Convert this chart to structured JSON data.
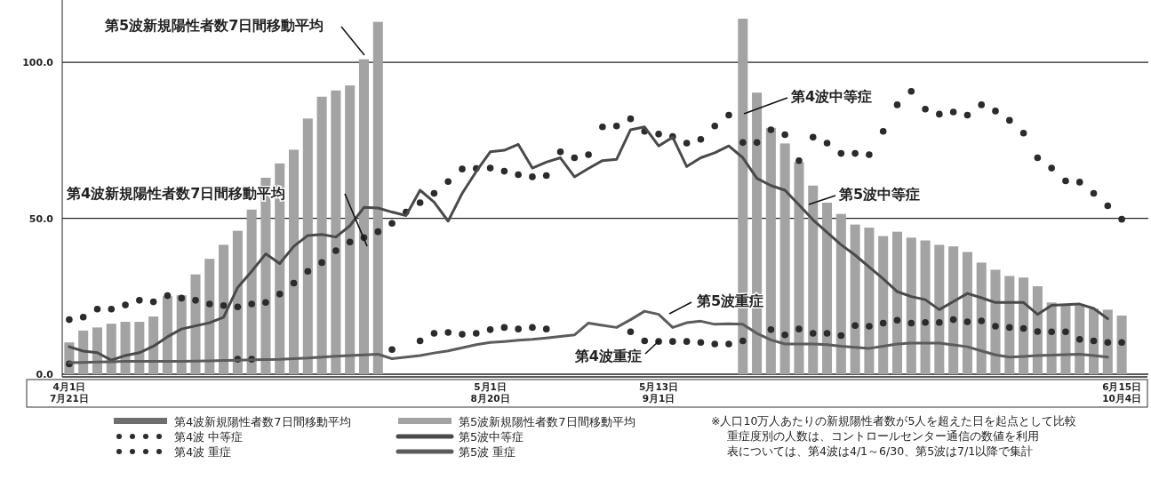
{
  "chart_data": {
    "type": "bar",
    "categories": [
      "4月1日\n7月21日",
      null,
      null,
      null,
      null,
      null,
      null,
      null,
      null,
      null,
      null,
      null,
      null,
      null,
      null,
      null,
      null,
      null,
      null,
      null,
      null,
      null,
      null,
      null,
      null,
      null,
      null,
      null,
      null,
      null,
      "5月1日\n8月20日",
      null,
      null,
      null,
      null,
      null,
      null,
      null,
      null,
      null,
      null,
      null,
      "5月13日\n9月1日",
      null,
      null,
      null,
      null,
      null,
      null,
      null,
      null,
      null,
      null,
      null,
      null,
      null,
      null,
      null,
      null,
      null,
      null,
      null,
      null,
      null,
      null,
      null,
      null,
      null,
      null,
      null,
      null,
      null,
      null,
      null,
      null,
      "6月15日\n10月4日"
    ],
    "ylim": [
      0,
      120
    ],
    "yticks": [
      {
        "value": 0,
        "label": "0.0"
      },
      {
        "value": 50,
        "label": "50.0"
      },
      {
        "value": 100,
        "label": "100.0"
      }
    ],
    "grid": "y",
    "legend": "bottom left",
    "series": [
      {
        "name": "第4波新規陽性者数7日間移動平均",
        "color": "#6e6e6e",
        "values": [
          null,
          null,
          null,
          null,
          null,
          null,
          null,
          null,
          null,
          null,
          null,
          null,
          null,
          null,
          null,
          null,
          null,
          null,
          null,
          null,
          null,
          null,
          null,
          null,
          null,
          null,
          null,
          null,
          null,
          null,
          null,
          null,
          null,
          null,
          null,
          null,
          null,
          null,
          null,
          null,
          null,
          null,
          null,
          null,
          null,
          null,
          null,
          null,
          null,
          null,
          null,
          null,
          null,
          null,
          null,
          null,
          null,
          null,
          null,
          null,
          null,
          null,
          null,
          null,
          null,
          null,
          null,
          null,
          null,
          null,
          null,
          null,
          null,
          null,
          null,
          null
        ]
      },
      {
        "name": "第4波 中等症",
        "type": "scatter",
        "marker": "circle",
        "color": "#2b2b2b",
        "values": [
          17.5,
          18.3,
          20.9,
          20.9,
          22.2,
          23.7,
          23.2,
          25.2,
          24.4,
          23.7,
          22.5,
          22,
          21.6,
          22.5,
          23,
          25.7,
          29.2,
          33,
          35.8,
          39.6,
          42.4,
          43.8,
          45.7,
          48.4,
          52,
          55,
          58,
          61.8,
          65.8,
          66,
          66.1,
          65.1,
          64,
          63.3,
          63.7,
          71.3,
          69.4,
          70.4,
          79.3,
          79.6,
          81.9,
          77.9,
          77,
          76.2,
          74.1,
          75.3,
          79.6,
          83.1,
          74.3,
          74.3,
          78.4,
          76.8,
          68.5,
          76,
          74.1,
          70.8,
          70.8,
          70.4,
          77.9,
          86.4,
          90.7,
          85,
          83.4,
          84.1,
          83.1,
          86.4,
          84.4,
          81.4,
          77.3,
          69.4,
          66.1,
          62,
          61.6,
          58,
          54,
          49.7
        ]
      },
      {
        "name": "第4波 重症",
        "type": "scatter",
        "marker": "circle",
        "color": "#2b2b2b",
        "values": [
          3.3,
          null,
          null,
          null,
          null,
          null,
          null,
          null,
          null,
          null,
          null,
          null,
          4.8,
          4.8,
          null,
          null,
          null,
          null,
          null,
          null,
          null,
          null,
          null,
          7.9,
          null,
          10.7,
          13.1,
          13.4,
          12.8,
          13.1,
          14.3,
          15,
          14.5,
          15,
          14.5,
          null,
          null,
          null,
          null,
          null,
          13.6,
          10.7,
          10.5,
          10.5,
          10.5,
          10.2,
          9.7,
          9.7,
          10.7,
          null,
          14.3,
          12.6,
          14.5,
          13.1,
          13.1,
          12.4,
          15.6,
          15.4,
          16.4,
          17.3,
          16.4,
          16.6,
          16.6,
          17.5,
          16.8,
          17.1,
          15.4,
          15,
          14.7,
          13.7,
          13.6,
          13.6,
          11.2,
          10.7,
          10.2,
          10.2
        ]
      },
      {
        "name": "第5波新規陽性者数7日間移動平均",
        "color": "#a3a3a3",
        "values": [
          10.2,
          14,
          15,
          16.2,
          16.8,
          16.8,
          18.5,
          25,
          25.3,
          32,
          37,
          41.5,
          46,
          52.8,
          63,
          67.6,
          72,
          82,
          89,
          91,
          92.6,
          101,
          113,
          null,
          null,
          null,
          null,
          null,
          null,
          null,
          null,
          null,
          null,
          null,
          null,
          null,
          null,
          null,
          null,
          null,
          null,
          null,
          null,
          null,
          null,
          null,
          null,
          null,
          114,
          90.3,
          79,
          74,
          68,
          60.5,
          55,
          51.4,
          48,
          47,
          44.3,
          45.7,
          43.8,
          42.9,
          41.5,
          41,
          39.2,
          35.8,
          33.5,
          31.5,
          31,
          28.2,
          23,
          22,
          22,
          21,
          20.7,
          18.8
        ]
      },
      {
        "name": "第5波中等症",
        "type": "line",
        "color": "#4a4a4a",
        "values": [
          8.8,
          7.4,
          6.9,
          4.5,
          6,
          6.9,
          9,
          12,
          14.5,
          15.5,
          16.5,
          18.3,
          27.8,
          33,
          38.6,
          35.5,
          41,
          44.5,
          44.8,
          44,
          47.6,
          53.5,
          53.3,
          52,
          50.9,
          59,
          55.2,
          49.1,
          58,
          65,
          71.3,
          71.8,
          73.7,
          66.1,
          68,
          69.4,
          63.3,
          66,
          68.5,
          68.9,
          78.4,
          79.3,
          73.2,
          76,
          66.6,
          69.4,
          71,
          73.2,
          69.4,
          62.8,
          60.5,
          59,
          54.3,
          49.5,
          45.5,
          41.5,
          38.2,
          34.4,
          30.6,
          26.5,
          24.9,
          23.9,
          20.7,
          23.3,
          25.9,
          24.5,
          23,
          23,
          23,
          19.2,
          22.1,
          22.3,
          22.5,
          21.1,
          17.8,
          null
        ]
      },
      {
        "name": "第5波 重症",
        "type": "line",
        "color": "#5c5c5c",
        "values": [
          3.7,
          3.8,
          3.9,
          4,
          4.1,
          4.1,
          4.1,
          4.1,
          4.1,
          4.2,
          4.3,
          4.4,
          4.5,
          4.6,
          4.7,
          4.8,
          5,
          5.2,
          5.5,
          5.8,
          6,
          6.2,
          6.4,
          5,
          5.5,
          6,
          6.8,
          7.5,
          8.5,
          9.5,
          10.2,
          10.5,
          10.9,
          11.2,
          11.6,
          12.1,
          12.6,
          16.4,
          15.7,
          15,
          17.5,
          20.2,
          19.2,
          15,
          16.5,
          17,
          16,
          16.2,
          16,
          13.1,
          11,
          9.7,
          9.7,
          9.7,
          9.5,
          9,
          8.6,
          8.3,
          9,
          9.7,
          10,
          10,
          10,
          9.4,
          8.8,
          7.5,
          6.2,
          5.5,
          5.7,
          6,
          6.1,
          6.3,
          6.4,
          6,
          5.5,
          null
        ]
      }
    ],
    "annotations": [
      "第5波新規陽性者数7日間移動平均",
      "第4波新規陽性者数7日間移動平均",
      "第4波中等症",
      "第5波中等症",
      "第5波重症",
      "第4波重症",
      "※人口10万人あたりの新規陽性者数が5人を超えた日を起点として比較",
      "重症度別の人数は、コントロールセンター通信の数値を利用",
      "表については、第4波は4/1～6/30、第5波は7/1以降で集計"
    ]
  }
}
